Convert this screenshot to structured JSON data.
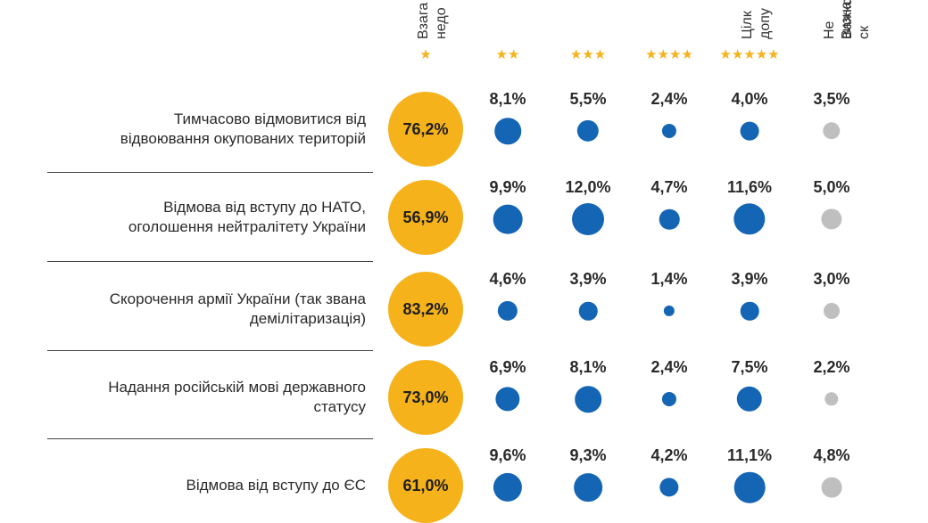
{
  "colors": {
    "accent": "#f5b21b",
    "dot": "#1565b5",
    "dot_muted": "#bfbfbf"
  },
  "columns": [
    {
      "header_lines": [
        "Взага",
        "недо"
      ],
      "stars": "★"
    },
    {
      "header_lines": [],
      "stars": "★★"
    },
    {
      "header_lines": [],
      "stars": "★★★"
    },
    {
      "header_lines": [],
      "stars": "★★★★"
    },
    {
      "header_lines": [
        "Цілк",
        "допу"
      ],
      "stars": "★★★★★"
    },
    {
      "header_lines": [
        "Не визна",
        "Важко ск"
      ],
      "stars": ""
    }
  ],
  "chart_data": {
    "type": "table",
    "rows": [
      {
        "label_lines": [
          "Тимчасово відмовитися від",
          "відвоювання окупованих територій"
        ],
        "values": [
          "76,2%",
          "8,1%",
          "5,5%",
          "2,4%",
          "4,0%",
          "3,5%"
        ]
      },
      {
        "label_lines": [
          "Відмова від вступу до НАТО,",
          "оголошення нейтралітету України"
        ],
        "values": [
          "56,9%",
          "9,9%",
          "12,0%",
          "4,7%",
          "11,6%",
          "5,0%"
        ]
      },
      {
        "label_lines": [
          "Скорочення армії України (так звана",
          "демілітаризація)"
        ],
        "values": [
          "83,2%",
          "4,6%",
          "3,9%",
          "1,4%",
          "3,9%",
          "3,0%"
        ]
      },
      {
        "label_lines": [
          "Надання російській мові державного",
          "статусу"
        ],
        "values": [
          "73,0%",
          "6,9%",
          "8,1%",
          "2,4%",
          "7,5%",
          "2,2%"
        ]
      },
      {
        "label_lines": [
          "Відмова від вступу до ЄС"
        ],
        "values": [
          "61,0%",
          "9,6%",
          "9,3%",
          "4,2%",
          "11,1%",
          "4,8%"
        ]
      }
    ]
  }
}
